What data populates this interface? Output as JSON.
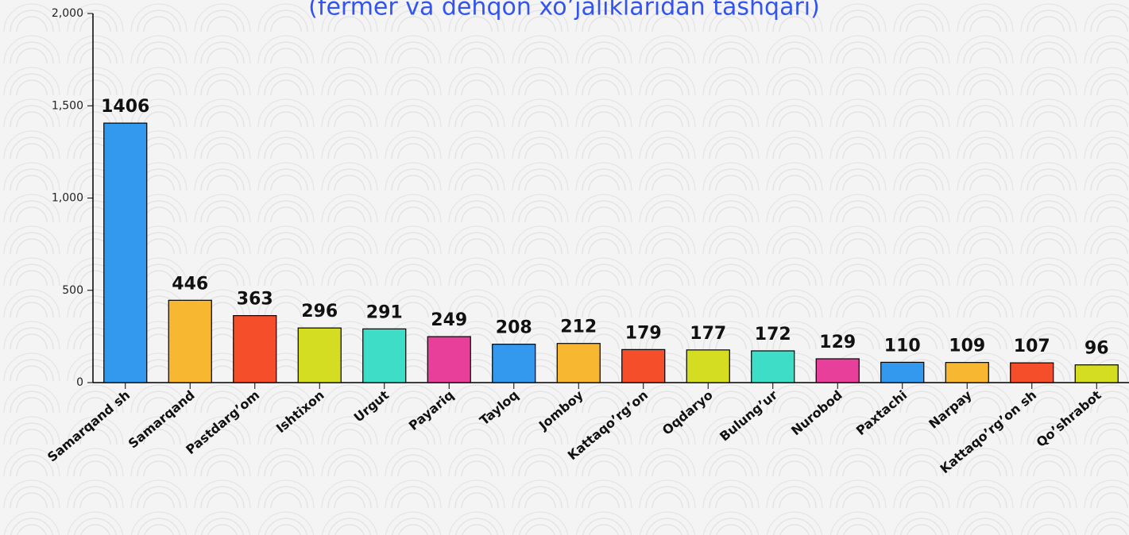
{
  "chart_data": {
    "type": "bar",
    "title": "(fermer va dehqon xo’jaliklaridan tashqari)",
    "categories": [
      "Samarqand sh",
      "Samarqand",
      "Pastdarg’om",
      "Ishtixon",
      "Urgut",
      "Payariq",
      "Tayloq",
      "Jomboy",
      "Kattaqo’rg’on",
      "Oqdaryo",
      "Bulung’ur",
      "Nurobod",
      "Paxtachi",
      "Narpay",
      "Kattaqo’rg’on sh",
      "Qo’shrabot"
    ],
    "values": [
      1406,
      446,
      363,
      296,
      291,
      249,
      208,
      212,
      179,
      177,
      172,
      129,
      110,
      109,
      107,
      96
    ],
    "colors": [
      "#3399ee",
      "#f7b731",
      "#f44f2a",
      "#d4dd22",
      "#3dddc7",
      "#e8409a",
      "#3399ee",
      "#f7b731",
      "#f44f2a",
      "#d4dd22",
      "#3dddc7",
      "#e8409a",
      "#3399ee",
      "#f7b731",
      "#f44f2a",
      "#d4dd22"
    ],
    "ylim": [
      0,
      2000
    ],
    "yticks": [
      0,
      500,
      {
        "value": 1000,
        "label": "1,000"
      },
      {
        "value": 1500,
        "label": "1,500"
      },
      {
        "value": 2000,
        "label": "2,000"
      }
    ],
    "grid": false
  }
}
